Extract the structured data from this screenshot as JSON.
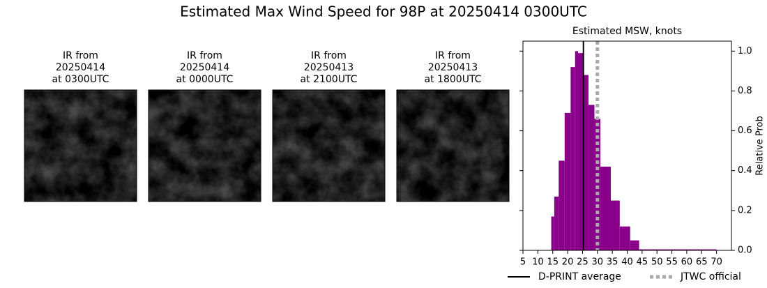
{
  "title": "Estimated Max Wind Speed for 98P at 20250414 0300UTC",
  "images": [
    {
      "title": [
        "IR from",
        "20250414",
        "at 0300UTC"
      ]
    },
    {
      "title": [
        "IR from",
        "20250414",
        "at 0000UTC"
      ]
    },
    {
      "title": [
        "IR from",
        "20250413",
        "at 2100UTC"
      ]
    },
    {
      "title": [
        "IR from",
        "20250413",
        "at 1800UTC"
      ]
    }
  ],
  "chart_data": {
    "type": "histogram",
    "title": "Estimated MSW, knots",
    "ylabel": "Relative Prob",
    "bins": [
      14.5,
      15.5,
      17,
      19,
      21,
      22.5,
      23.5,
      25.5,
      27,
      29,
      31,
      34.5,
      37.5,
      41,
      44,
      70
    ],
    "counts": [
      0.17,
      0.27,
      0.45,
      0.69,
      0.92,
      1.0,
      0.99,
      0.88,
      0.73,
      0.66,
      0.42,
      0.25,
      0.12,
      0.05,
      0.005
    ],
    "color": "#8b008b",
    "xlim": [
      5,
      75
    ],
    "ylim": [
      0,
      1.05
    ],
    "xticks": [
      5,
      10,
      15,
      20,
      25,
      30,
      35,
      40,
      45,
      50,
      55,
      60,
      65,
      70
    ],
    "yticks": [
      {
        "value": 0,
        "label": "0.0"
      },
      {
        "value": 0.2,
        "label": "0.2"
      },
      {
        "value": 0.4,
        "label": "0.4"
      },
      {
        "value": 0.6,
        "label": "0.6"
      },
      {
        "value": 0.8,
        "label": "0.8"
      },
      {
        "value": 1,
        "label": "1.0"
      }
    ],
    "lines": [
      {
        "name": "D-PRINT average",
        "value": 25.3,
        "color": "#000000",
        "dashed": false
      },
      {
        "name": "JTWC official",
        "value": 30,
        "color": "#a9a9a9",
        "dashed": true
      }
    ]
  }
}
